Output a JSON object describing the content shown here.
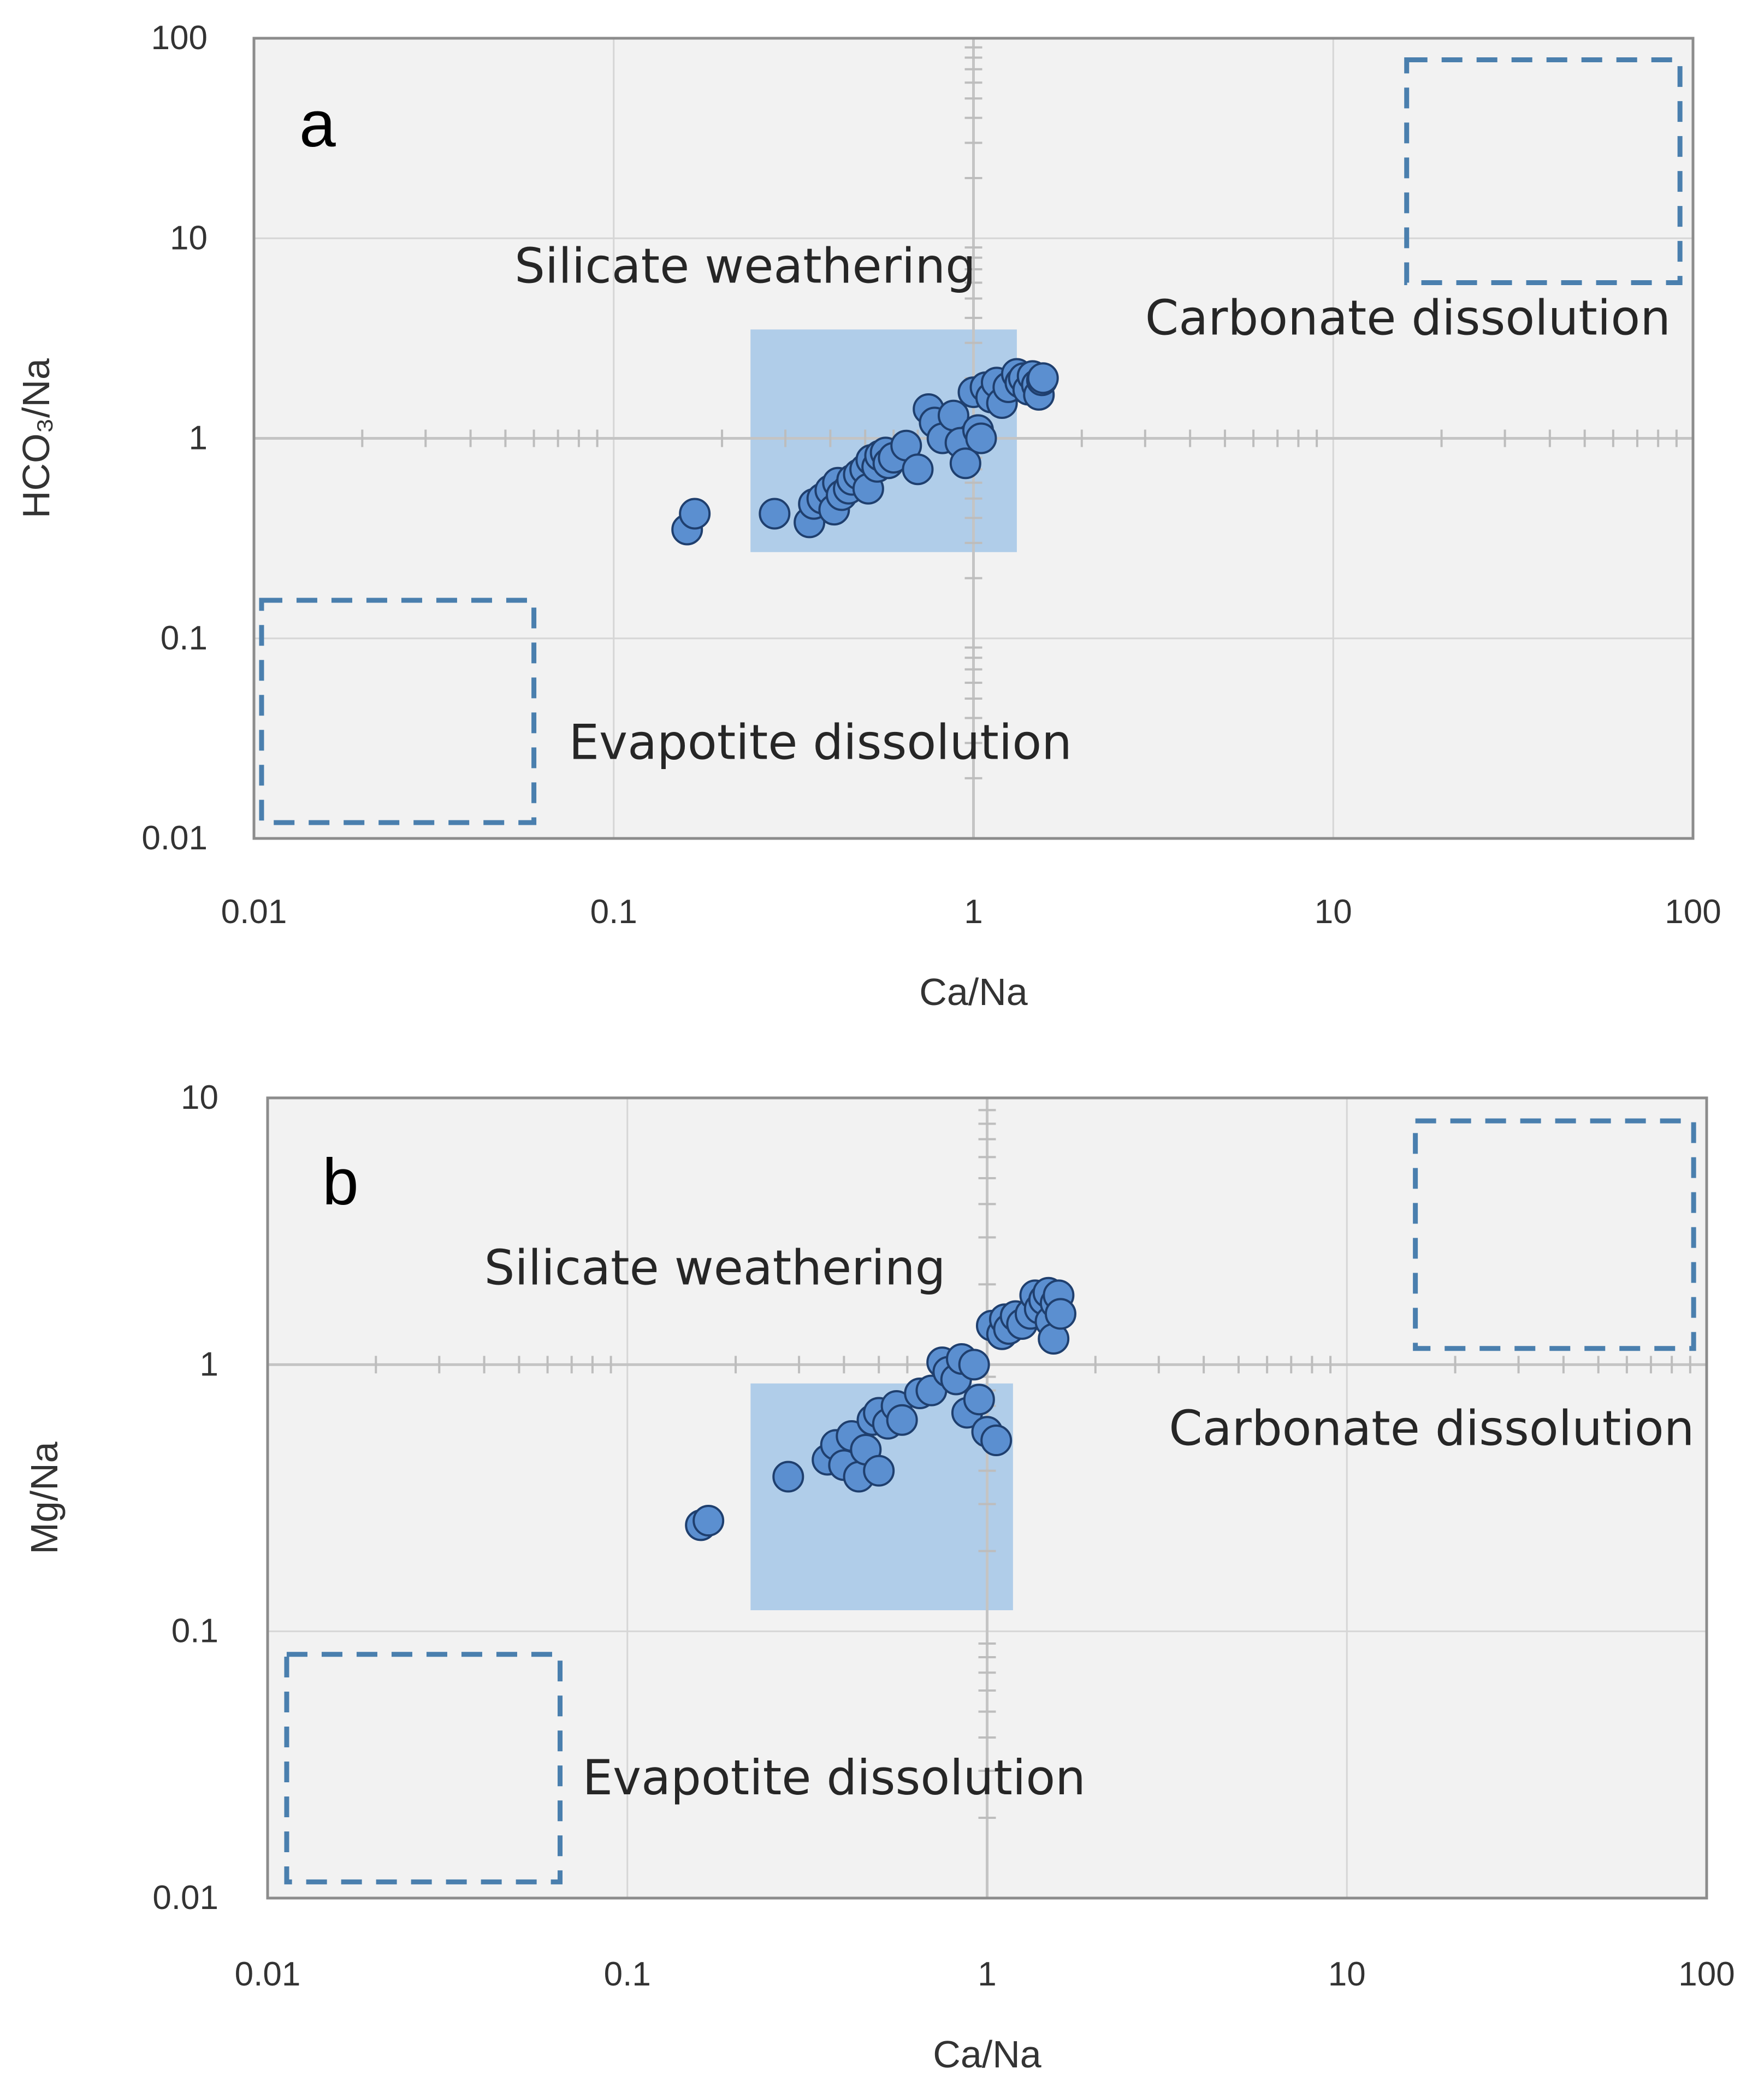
{
  "chart_data": [
    {
      "type": "scatter",
      "panel": "a",
      "xscale": "log",
      "yscale": "log",
      "xlim": [
        0.01,
        100
      ],
      "ylim": [
        0.01,
        100
      ],
      "xlabel": "Ca/Na",
      "ylabel": "HCO₃/Na",
      "xticks": [
        "0.01",
        "0.1",
        "1",
        "10",
        "100"
      ],
      "yticks": [
        "0.01",
        "0.1",
        "1",
        "10",
        "100"
      ],
      "grid": true,
      "regions": [
        {
          "name": "Silicate weathering",
          "style": "filled",
          "color": "#a9c9e8",
          "x": [
            0.24,
            1.32
          ],
          "y": [
            0.27,
            3.5
          ],
          "label": "Silicate weathering",
          "label_at": [
            0.053,
            6.0
          ]
        },
        {
          "name": "Carbonate dissolution",
          "style": "dashed",
          "color": "#4a7fae",
          "x": [
            16,
            92
          ],
          "y": [
            6,
            78
          ],
          "label": "Carbonate dissolution",
          "label_at": [
            3.0,
            3.3
          ]
        },
        {
          "name": "Evapotite dissolution",
          "style": "dashed",
          "color": "#4a7fae",
          "x": [
            0.0105,
            0.06
          ],
          "y": [
            0.012,
            0.155
          ],
          "label": "Evapotite dissolution",
          "label_at": [
            0.075,
            0.025
          ]
        }
      ],
      "points": [
        [
          0.16,
          0.35
        ],
        [
          0.168,
          0.42
        ],
        [
          0.28,
          0.42
        ],
        [
          0.35,
          0.38
        ],
        [
          0.36,
          0.47
        ],
        [
          0.38,
          0.5
        ],
        [
          0.4,
          0.55
        ],
        [
          0.41,
          0.44
        ],
        [
          0.42,
          0.6
        ],
        [
          0.43,
          0.52
        ],
        [
          0.45,
          0.56
        ],
        [
          0.46,
          0.62
        ],
        [
          0.48,
          0.66
        ],
        [
          0.5,
          0.7
        ],
        [
          0.51,
          0.56
        ],
        [
          0.52,
          0.78
        ],
        [
          0.54,
          0.72
        ],
        [
          0.55,
          0.82
        ],
        [
          0.57,
          0.85
        ],
        [
          0.58,
          0.75
        ],
        [
          0.6,
          0.8
        ],
        [
          0.65,
          0.92
        ],
        [
          0.7,
          0.7
        ],
        [
          0.75,
          1.4
        ],
        [
          0.78,
          1.2
        ],
        [
          0.82,
          1.0
        ],
        [
          0.88,
          1.3
        ],
        [
          0.92,
          0.95
        ],
        [
          0.95,
          0.75
        ],
        [
          1.0,
          1.7
        ],
        [
          1.03,
          1.1
        ],
        [
          1.05,
          1.0
        ],
        [
          1.08,
          1.8
        ],
        [
          1.12,
          1.6
        ],
        [
          1.16,
          1.9
        ],
        [
          1.2,
          1.5
        ],
        [
          1.25,
          1.8
        ],
        [
          1.32,
          2.1
        ],
        [
          1.35,
          1.9
        ],
        [
          1.38,
          2.0
        ],
        [
          1.42,
          1.75
        ],
        [
          1.46,
          2.05
        ],
        [
          1.5,
          1.85
        ],
        [
          1.52,
          1.65
        ],
        [
          1.55,
          1.95
        ],
        [
          1.56,
          2.0
        ]
      ]
    },
    {
      "type": "scatter",
      "panel": "b",
      "xscale": "log",
      "yscale": "log",
      "xlim": [
        0.01,
        100
      ],
      "ylim": [
        0.01,
        10
      ],
      "xlabel": "Ca/Na",
      "ylabel": "Mg/Na",
      "xticks": [
        "0.01",
        "0.1",
        "1",
        "10",
        "100"
      ],
      "yticks": [
        "0.01",
        "0.1",
        "1",
        "10"
      ],
      "grid": true,
      "regions": [
        {
          "name": "Silicate weathering",
          "style": "filled",
          "color": "#a9c9e8",
          "x": [
            0.22,
            1.18
          ],
          "y": [
            0.12,
            0.85
          ],
          "label": "Silicate weathering",
          "label_at": [
            0.04,
            2.0
          ]
        },
        {
          "name": "Carbonate dissolution",
          "style": "dashed",
          "color": "#4a7fae",
          "x": [
            15.5,
            92
          ],
          "y": [
            1.15,
            8.2
          ],
          "label": "Carbonate dissolution",
          "label_at": [
            3.2,
            0.5
          ]
        },
        {
          "name": "Evapotite dissolution",
          "style": "dashed",
          "color": "#4a7fae",
          "x": [
            0.0113,
            0.065
          ],
          "y": [
            0.0115,
            0.082
          ],
          "label": "Evapotite dissolution",
          "label_at": [
            0.075,
            0.0245
          ]
        }
      ],
      "points": [
        [
          0.16,
          0.25
        ],
        [
          0.168,
          0.26
        ],
        [
          0.28,
          0.38
        ],
        [
          0.36,
          0.44
        ],
        [
          0.38,
          0.5
        ],
        [
          0.4,
          0.42
        ],
        [
          0.42,
          0.54
        ],
        [
          0.44,
          0.38
        ],
        [
          0.46,
          0.48
        ],
        [
          0.48,
          0.62
        ],
        [
          0.5,
          0.4
        ],
        [
          0.5,
          0.66
        ],
        [
          0.53,
          0.6
        ],
        [
          0.56,
          0.7
        ],
        [
          0.58,
          0.62
        ],
        [
          0.65,
          0.78
        ],
        [
          0.7,
          0.8
        ],
        [
          0.75,
          1.02
        ],
        [
          0.78,
          0.94
        ],
        [
          0.82,
          0.88
        ],
        [
          0.85,
          1.05
        ],
        [
          0.88,
          0.66
        ],
        [
          0.92,
          1.0
        ],
        [
          0.95,
          0.74
        ],
        [
          1.0,
          0.56
        ],
        [
          1.03,
          1.4
        ],
        [
          1.06,
          0.52
        ],
        [
          1.1,
          1.3
        ],
        [
          1.12,
          1.48
        ],
        [
          1.15,
          1.36
        ],
        [
          1.2,
          1.52
        ],
        [
          1.25,
          1.42
        ],
        [
          1.32,
          1.55
        ],
        [
          1.36,
          1.82
        ],
        [
          1.4,
          1.62
        ],
        [
          1.44,
          1.75
        ],
        [
          1.48,
          1.86
        ],
        [
          1.5,
          1.45
        ],
        [
          1.53,
          1.25
        ],
        [
          1.55,
          1.7
        ],
        [
          1.58,
          1.82
        ],
        [
          1.6,
          1.55
        ]
      ]
    }
  ]
}
